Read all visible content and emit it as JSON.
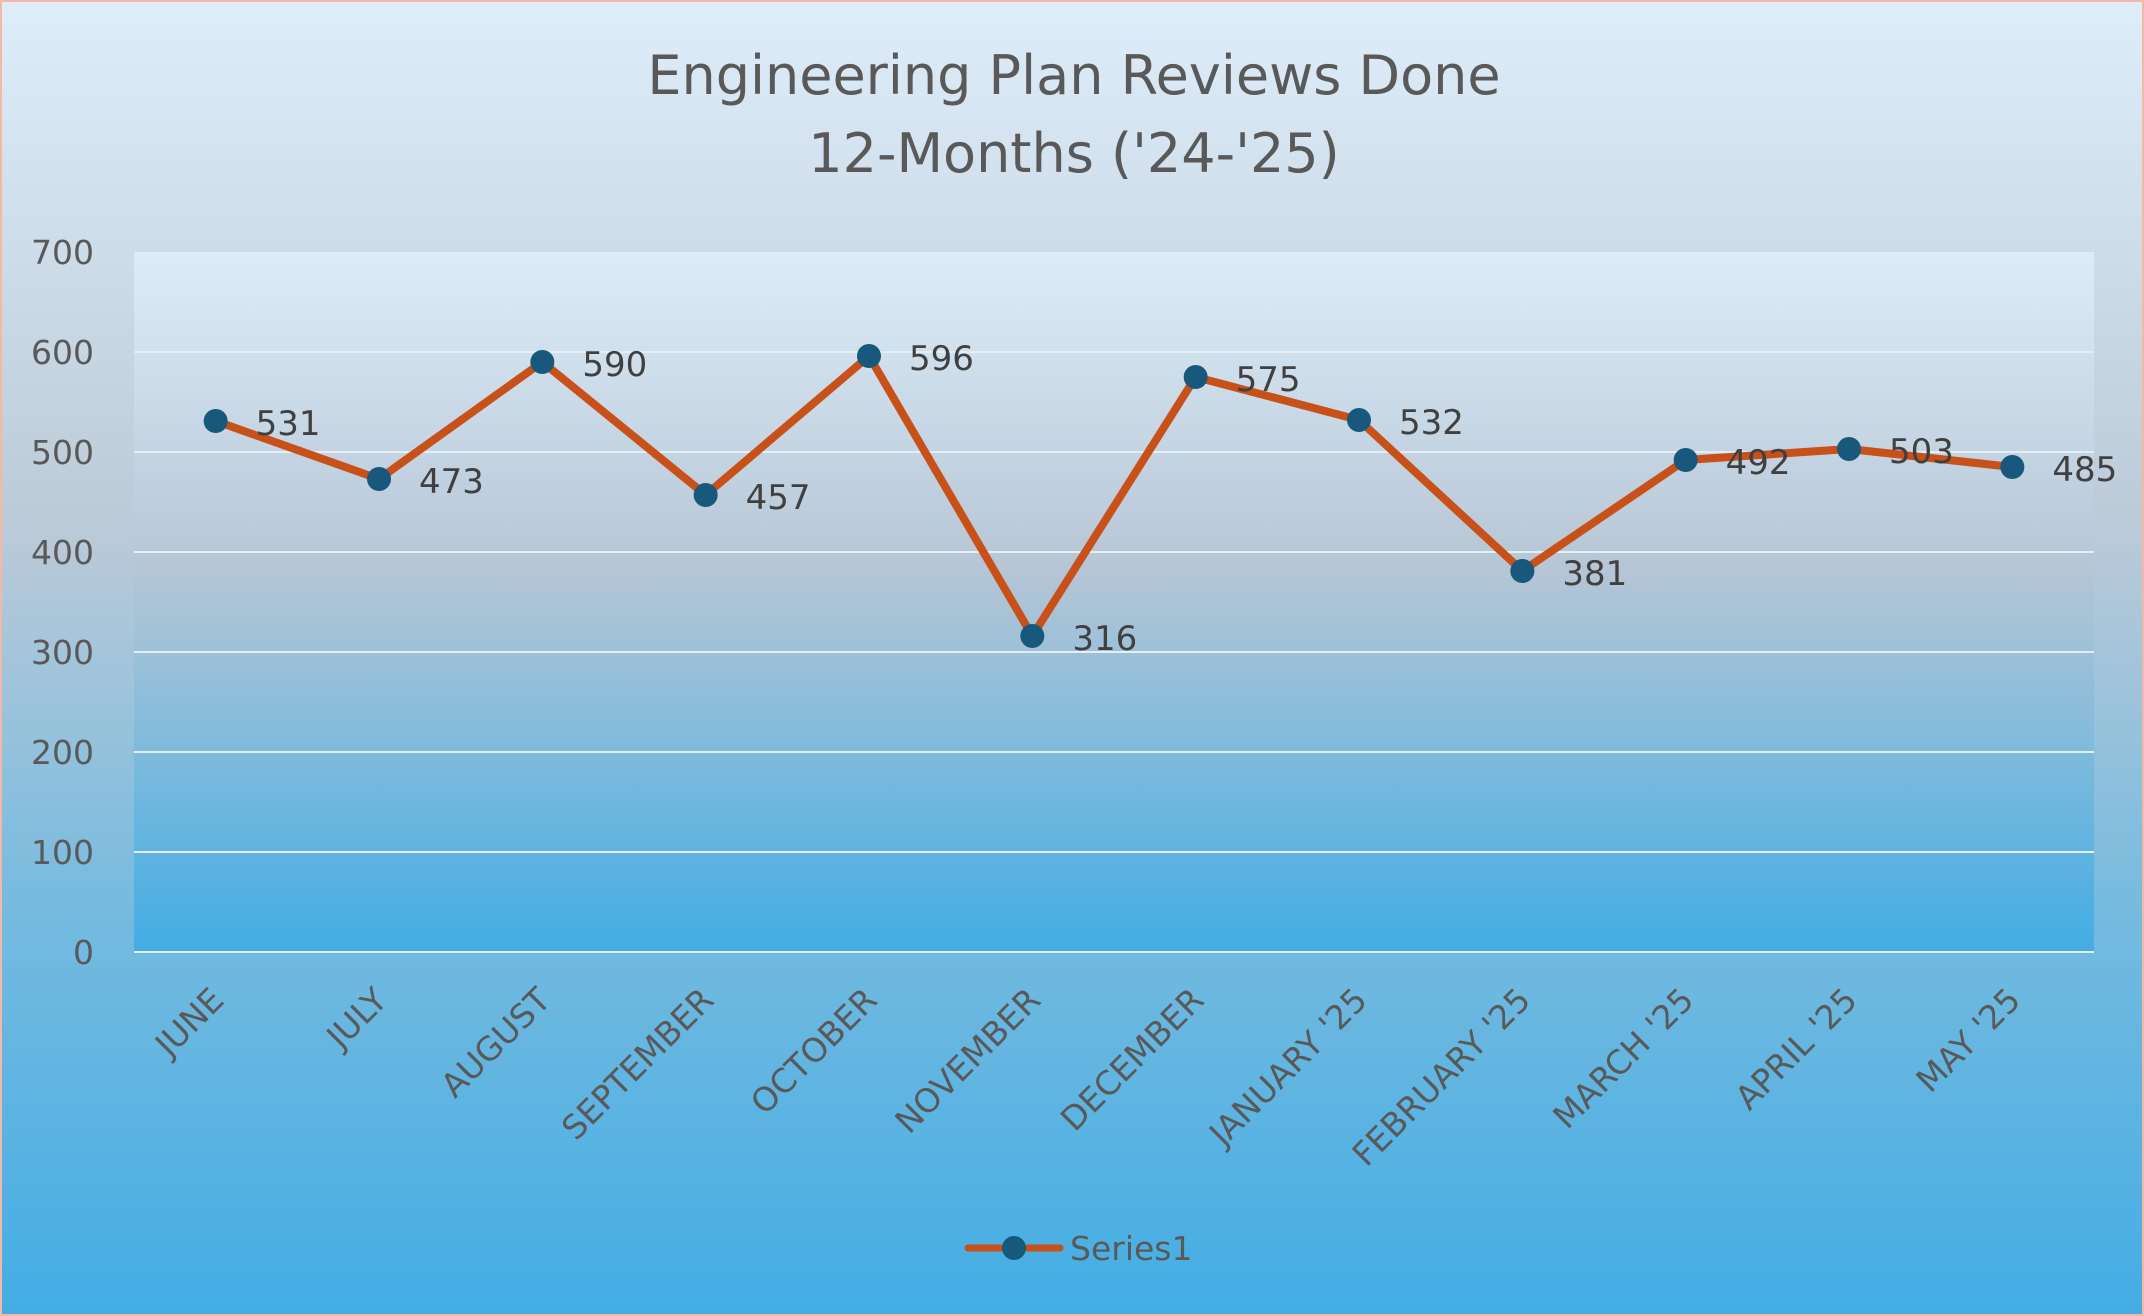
{
  "chart_data": {
    "type": "line",
    "title": "Engineering Plan Reviews Done",
    "subtitle": "12-Months ('24-'25)",
    "categories": [
      "JUNE",
      "JULY",
      "AUGUST",
      "SEPTEMBER",
      "OCTOBER",
      "NOVEMBER",
      "DECEMBER",
      "JANUARY '25",
      "FEBRUARY '25",
      "MARCH '25",
      "APRIL '25",
      "MAY '25"
    ],
    "series": [
      {
        "name": "Series1",
        "values": [
          531,
          473,
          590,
          457,
          596,
          316,
          575,
          532,
          381,
          492,
          503,
          485
        ]
      }
    ],
    "xlabel": "",
    "ylabel": "",
    "ylim": [
      0,
      700
    ],
    "yticks": [
      0,
      100,
      200,
      300,
      400,
      500,
      600,
      700
    ],
    "grid": true,
    "legend": "bottom",
    "data_labels": true,
    "colors": {
      "line": "#c8511a",
      "marker": "#17587c",
      "grid": "#e4eef7",
      "plot_top": "#ddecf8",
      "plot_mid": "#b6c6d5",
      "plot_bottom": "#42ade4"
    }
  }
}
